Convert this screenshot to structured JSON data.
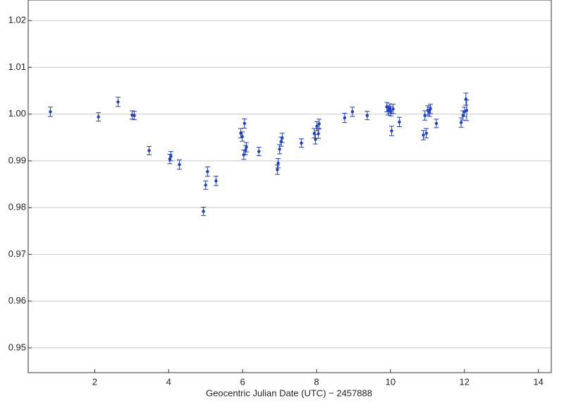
{
  "chart_data": {
    "type": "scatter",
    "x_label": "Geocentric Julian Date (UTC) − 2457888",
    "x": [
      0.8,
      2.1,
      2.63,
      3.01,
      3.07,
      3.47,
      4.03,
      4.06,
      4.29,
      4.94,
      5.0,
      5.05,
      5.28,
      5.95,
      5.99,
      6.03,
      6.05,
      6.08,
      6.1,
      6.44,
      6.94,
      6.96,
      7.0,
      7.04,
      7.07,
      7.59,
      7.94,
      7.97,
      8.01,
      8.05,
      8.07,
      8.76,
      8.97,
      9.37,
      9.9,
      9.94,
      9.98,
      10.01,
      10.03,
      10.07,
      10.24,
      10.89,
      10.93,
      10.97,
      11.01,
      11.05,
      11.08,
      11.24,
      11.91,
      11.96,
      12.0,
      12.04,
      12.06
    ],
    "values": [
      1.0005,
      0.9994,
      1.0026,
      0.9998,
      0.9997,
      0.9922,
      0.9904,
      0.991,
      0.9892,
      0.9792,
      0.9848,
      0.9877,
      0.9857,
      0.9959,
      0.9952,
      0.9913,
      0.998,
      0.9923,
      0.9929,
      0.992,
      0.9881,
      0.9895,
      0.9925,
      0.9941,
      0.9949,
      0.9938,
      0.9959,
      0.9946,
      0.9974,
      0.9958,
      0.9979,
      0.9992,
      1.0005,
      0.9997,
      1.0015,
      1.0008,
      1.0012,
      1.0006,
      0.9964,
      1.0011,
      0.9983,
      0.9955,
      0.9997,
      0.9959,
      1.0008,
      1.0005,
      1.0011,
      0.998,
      0.9982,
      0.9997,
      1.0005,
      1.0032,
      1.0008
    ],
    "errors": [
      0.001,
      0.0009,
      0.001,
      0.0009,
      0.0009,
      0.0009,
      0.001,
      0.001,
      0.001,
      0.0009,
      0.0009,
      0.001,
      0.001,
      0.001,
      0.001,
      0.001,
      0.001,
      0.001,
      0.001,
      0.0009,
      0.001,
      0.001,
      0.001,
      0.001,
      0.001,
      0.0009,
      0.001,
      0.001,
      0.001,
      0.001,
      0.001,
      0.001,
      0.001,
      0.0009,
      0.001,
      0.001,
      0.001,
      0.001,
      0.001,
      0.001,
      0.001,
      0.001,
      0.001,
      0.001,
      0.001,
      0.001,
      0.001,
      0.0009,
      0.001,
      0.001,
      0.001,
      0.0013,
      0.0022
    ],
    "color": "#1f3fbf",
    "xlim": [
      0.2,
      14.35
    ],
    "ylim": [
      0.9447,
      1.0244
    ],
    "xticks": [
      2,
      4,
      6,
      8,
      10,
      12,
      14
    ],
    "yticks": [
      0.95,
      0.96,
      0.97,
      0.98,
      0.99,
      {
        "value": 1,
        "label": "1.00"
      },
      1.01,
      1.02
    ],
    "grid": true
  }
}
